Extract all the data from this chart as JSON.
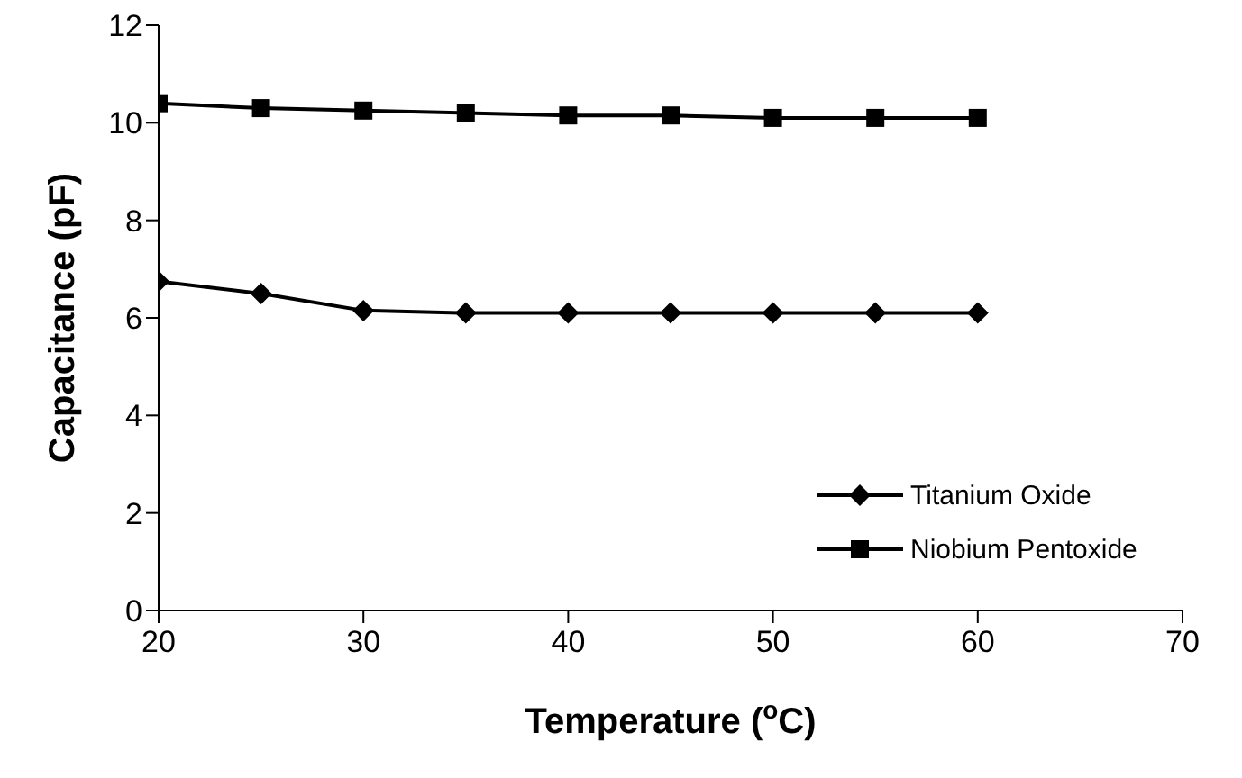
{
  "chart_data": {
    "type": "line",
    "xlabel": "Temperature ($^{o}$C)",
    "ylabel": "Capacitance (pF)",
    "x": [
      20,
      25,
      30,
      35,
      40,
      45,
      50,
      55,
      60
    ],
    "series": [
      {
        "name": "Titanium Oxide",
        "color": "#000000",
        "marker": "diamond",
        "values": [
          6.75,
          6.5,
          6.15,
          6.1,
          6.1,
          6.1,
          6.1,
          6.1,
          6.1
        ]
      },
      {
        "name": "Niobium Pentoxide",
        "color": "#000000",
        "marker": "square",
        "values": [
          10.4,
          10.3,
          10.25,
          10.2,
          10.15,
          10.15,
          10.1,
          10.1,
          10.1
        ]
      }
    ],
    "xlim": [
      20,
      70
    ],
    "xticks": [
      20,
      30,
      40,
      50,
      60,
      70
    ],
    "ylim": [
      0,
      12
    ],
    "yticks": [
      0,
      2,
      4,
      6,
      8,
      10,
      12
    ],
    "grid": false,
    "legend": "bottom right",
    "line_style": "solid"
  }
}
